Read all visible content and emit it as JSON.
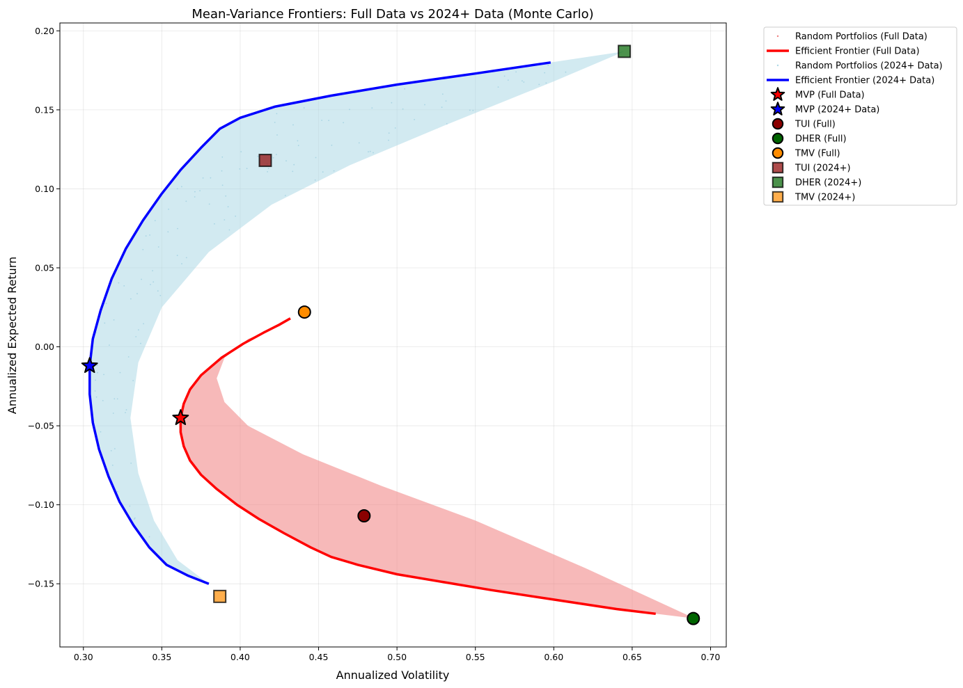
{
  "chart_data": {
    "type": "scatter",
    "title": "Mean-Variance Frontiers: Full Data vs 2024+ Data (Monte Carlo)",
    "xlabel": "Annualized Volatility",
    "ylabel": "Annualized Expected Return",
    "xlim": [
      0.285,
      0.71
    ],
    "ylim": [
      -0.19,
      0.205
    ],
    "xticks": [
      0.3,
      0.35,
      0.4,
      0.45,
      0.5,
      0.55,
      0.6,
      0.65,
      0.7
    ],
    "xtick_labels": [
      "0.30",
      "0.35",
      "0.40",
      "0.45",
      "0.50",
      "0.55",
      "0.60",
      "0.65",
      "0.70"
    ],
    "yticks": [
      -0.15,
      -0.1,
      -0.05,
      0.0,
      0.05,
      0.1,
      0.15,
      0.2
    ],
    "ytick_labels": [
      "−0.15",
      "−0.10",
      "−0.05",
      "0.00",
      "0.05",
      "0.10",
      "0.15",
      "0.20"
    ],
    "grid": true,
    "legend_position": "outside-top-right",
    "series": [
      {
        "name": "Random Portfolios (Full Data)",
        "kind": "scatter-cloud",
        "color": "#f08080",
        "mvp": [
          0.362,
          -0.045
        ],
        "upper_end": [
          0.432,
          0.018
        ],
        "lower_end": [
          0.69,
          -0.172
        ],
        "upper_boundary_x": [
          0.432,
          0.43,
          0.41,
          0.395,
          0.385,
          0.38
        ],
        "upper_boundary_y": [
          0.018,
          0.005,
          -0.015,
          -0.035,
          -0.055,
          -0.07
        ]
      },
      {
        "name": "Efficient Frontier (Full Data)",
        "kind": "line",
        "color": "#ff0000",
        "x": [
          0.432,
          0.425,
          0.415,
          0.402,
          0.388,
          0.375,
          0.368,
          0.364,
          0.362,
          0.362,
          0.364,
          0.368,
          0.375,
          0.385,
          0.398,
          0.412,
          0.428,
          0.445,
          0.458,
          0.475,
          0.5,
          0.53,
          0.56,
          0.6,
          0.64,
          0.665
        ],
        "y": [
          0.018,
          0.014,
          0.009,
          0.002,
          -0.007,
          -0.018,
          -0.027,
          -0.036,
          -0.045,
          -0.054,
          -0.063,
          -0.072,
          -0.081,
          -0.09,
          -0.1,
          -0.109,
          -0.118,
          -0.127,
          -0.133,
          -0.138,
          -0.144,
          -0.149,
          -0.154,
          -0.16,
          -0.166,
          -0.169
        ]
      },
      {
        "name": "Random Portfolios (2024+ Data)",
        "kind": "scatter-cloud",
        "color": "#add8e6",
        "mvp": [
          0.304,
          -0.012
        ],
        "upper_end": [
          0.645,
          0.187
        ],
        "lower_end": [
          0.38,
          -0.15
        ]
      },
      {
        "name": "Efficient Frontier (2024+ Data)",
        "kind": "line",
        "color": "#0000ff",
        "x": [
          0.598,
          0.55,
          0.5,
          0.458,
          0.422,
          0.4,
          0.387,
          0.375,
          0.362,
          0.35,
          0.338,
          0.327,
          0.318,
          0.311,
          0.306,
          0.304,
          0.304,
          0.306,
          0.31,
          0.316,
          0.323,
          0.332,
          0.342,
          0.353,
          0.367,
          0.38
        ],
        "y": [
          0.18,
          0.173,
          0.166,
          0.159,
          0.152,
          0.145,
          0.138,
          0.126,
          0.112,
          0.097,
          0.08,
          0.062,
          0.043,
          0.023,
          0.005,
          -0.012,
          -0.03,
          -0.048,
          -0.065,
          -0.082,
          -0.098,
          -0.113,
          -0.127,
          -0.138,
          -0.145,
          -0.15
        ]
      }
    ],
    "markers": [
      {
        "name": "MVP (Full Data)",
        "shape": "star",
        "color": "#ff0000",
        "x": 0.362,
        "y": -0.045
      },
      {
        "name": "MVP (2024+ Data)",
        "shape": "star",
        "color": "#0000ff",
        "x": 0.304,
        "y": -0.012
      },
      {
        "name": "TUI (Full)",
        "shape": "circle",
        "color": "#8b0000",
        "x": 0.479,
        "y": -0.107
      },
      {
        "name": "DHER (Full)",
        "shape": "circle",
        "color": "#006400",
        "x": 0.689,
        "y": -0.172
      },
      {
        "name": "TMV (Full)",
        "shape": "circle",
        "color": "#ff8c00",
        "x": 0.441,
        "y": 0.022
      },
      {
        "name": "TUI (2024+)",
        "shape": "square",
        "color": "#8b0000",
        "x": 0.416,
        "y": 0.118
      },
      {
        "name": "DHER (2024+)",
        "shape": "square",
        "color": "#006400",
        "x": 0.645,
        "y": 0.187
      },
      {
        "name": "TMV (2024+)",
        "shape": "square",
        "color": "#ff8c00",
        "x": 0.387,
        "y": -0.158
      }
    ],
    "legend": [
      {
        "label": "Random Portfolios (Full Data)",
        "kind": "dot",
        "color": "#f08080"
      },
      {
        "label": "Efficient Frontier (Full Data)",
        "kind": "line",
        "color": "#ff0000"
      },
      {
        "label": "Random Portfolios (2024+ Data)",
        "kind": "dot",
        "color": "#add8e6"
      },
      {
        "label": "Efficient Frontier (2024+ Data)",
        "kind": "line",
        "color": "#0000ff"
      },
      {
        "label": "MVP (Full Data)",
        "kind": "star",
        "color": "#ff0000"
      },
      {
        "label": "MVP (2024+ Data)",
        "kind": "star",
        "color": "#0000ff"
      },
      {
        "label": "TUI (Full)",
        "kind": "circle",
        "color": "#8b0000"
      },
      {
        "label": "DHER (Full)",
        "kind": "circle",
        "color": "#006400"
      },
      {
        "label": "TMV (Full)",
        "kind": "circle",
        "color": "#ff8c00"
      },
      {
        "label": "TUI (2024+)",
        "kind": "square",
        "color": "#8b0000"
      },
      {
        "label": "DHER (2024+)",
        "kind": "square",
        "color": "#006400"
      },
      {
        "label": "TMV (2024+)",
        "kind": "square",
        "color": "#ff8c00"
      }
    ]
  }
}
